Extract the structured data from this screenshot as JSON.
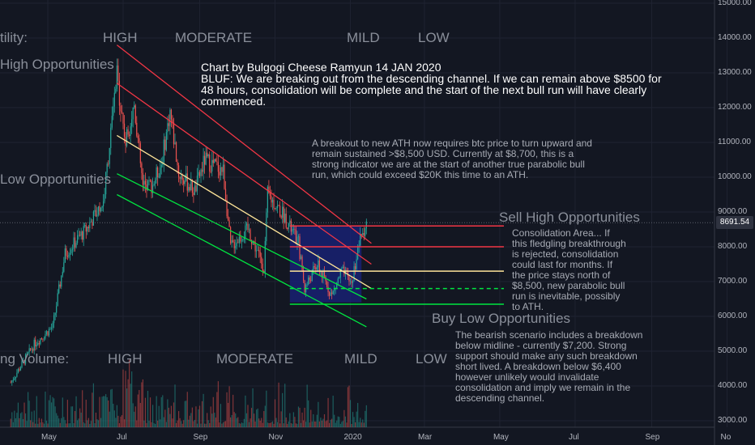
{
  "annotations": {
    "volatility_label": "tility:",
    "volatility_high": "HIGH",
    "volatility_moderate": "MODERATE",
    "volatility_mild": "MILD",
    "volatility_low": "LOW",
    "volume_label": "ng Volume:",
    "volume_high": "HIGH",
    "volume_moderate": "MODERATE",
    "volume_mild": "MILD",
    "volume_low": "LOW",
    "sell_high_left": "High Opportunities",
    "buy_low_left": "Low Opportunities",
    "sell_high_right": "Sell High Opportunities",
    "buy_low_right": "Buy Low Opportunities",
    "bluf": "Chart by Bulgogi Cheese Ramyun 14 JAN 2020\nBLUF: We are breaking out from the descending channel.  If we can remain above $8500 for\n48 hours, consolidation will be complete and the start of the next bull run will have clearly\ncommenced.",
    "breakout_note": "A breakout to new ATH now requires btc price to turn upward and\nremain sustained >$8,500 USD.  Currently at $8,700, this is a\nstrong indicator we are at the start of another true parabolic bull\nrun, which could exceed $20K this time to an ATH.",
    "consolidation_note": "Consolidation Area... If\nthis fledgling breakthrough\nis rejected, consolidation\ncould last for months.  If\nthe price stays north of\n$8,500, new parabolic bull\nrun is inevitable, possibly\nto ATH.",
    "bearish_note": "The bearish scenario includes a breakdown\nbelow midline - currently $7,200.  Strong\nsupport should make any such breakdown\nshort lived.  A breakdown below $6,400\nhowever unlikely would invalidate\nconsolidation and imply we remain in the\ndescending channel."
  },
  "current_price_label": "8691.54",
  "chart_data": {
    "type": "candlestick",
    "y_axis": {
      "min": 3000,
      "max": 15000,
      "scale": "linear",
      "position": "right",
      "ticks": [
        "3000.00",
        "4000.00",
        "5000.00",
        "6000.00",
        "7000.00",
        "8000.00",
        "9000.00",
        "10000.00",
        "11000.00",
        "12000.00",
        "13000.00",
        "14000.00",
        "15000.00"
      ]
    },
    "x_axis": {
      "ticks": [
        "May",
        "Jul",
        "Sep",
        "Nov",
        "2020",
        "Mar",
        "May",
        "Jul",
        "Sep",
        "No"
      ],
      "tick_dates": [
        "2019-05-01",
        "2019-07-01",
        "2019-09-01",
        "2019-11-01",
        "2020-01-01",
        "2020-03-01",
        "2020-05-01",
        "2020-07-01",
        "2020-09-01",
        "2020-11-01"
      ]
    },
    "current_price": 8691.54,
    "price_path": [
      {
        "date": "2019-04-01",
        "close": 4100
      },
      {
        "date": "2019-04-20",
        "close": 5200
      },
      {
        "date": "2019-05-05",
        "close": 5700
      },
      {
        "date": "2019-05-15",
        "close": 7800
      },
      {
        "date": "2019-06-01",
        "close": 8500
      },
      {
        "date": "2019-06-15",
        "close": 9300
      },
      {
        "date": "2019-06-26",
        "close": 12900
      },
      {
        "date": "2019-07-03",
        "close": 11000
      },
      {
        "date": "2019-07-10",
        "close": 12100
      },
      {
        "date": "2019-07-17",
        "close": 9700
      },
      {
        "date": "2019-07-25",
        "close": 9800
      },
      {
        "date": "2019-08-01",
        "close": 10400
      },
      {
        "date": "2019-08-08",
        "close": 11900
      },
      {
        "date": "2019-08-15",
        "close": 10100
      },
      {
        "date": "2019-08-28",
        "close": 9600
      },
      {
        "date": "2019-09-05",
        "close": 10500
      },
      {
        "date": "2019-09-20",
        "close": 10200
      },
      {
        "date": "2019-09-26",
        "close": 8000
      },
      {
        "date": "2019-10-10",
        "close": 8500
      },
      {
        "date": "2019-10-23",
        "close": 7400
      },
      {
        "date": "2019-10-26",
        "close": 9500
      },
      {
        "date": "2019-11-08",
        "close": 8900
      },
      {
        "date": "2019-11-20",
        "close": 8100
      },
      {
        "date": "2019-11-25",
        "close": 6800
      },
      {
        "date": "2019-12-05",
        "close": 7500
      },
      {
        "date": "2019-12-17",
        "close": 6600
      },
      {
        "date": "2019-12-25",
        "close": 7300
      },
      {
        "date": "2020-01-02",
        "close": 6950
      },
      {
        "date": "2020-01-08",
        "close": 8100
      },
      {
        "date": "2020-01-14",
        "close": 8691.54
      }
    ],
    "channel_lines": [
      {
        "color": "#f23645",
        "from": {
          "date": "2019-06-26",
          "price": 13800
        },
        "to": {
          "date": "2020-01-18",
          "price": 8100
        }
      },
      {
        "color": "#f23645",
        "from": {
          "date": "2019-06-26",
          "price": 12700
        },
        "to": {
          "date": "2020-01-18",
          "price": 7500
        }
      },
      {
        "color": "#ffe599",
        "from": {
          "date": "2019-06-26",
          "price": 11200
        },
        "to": {
          "date": "2020-01-18",
          "price": 6800
        }
      },
      {
        "color": "#00e640",
        "from": {
          "date": "2019-06-26",
          "price": 10100
        },
        "to": {
          "date": "2020-01-14",
          "price": 6500
        }
      },
      {
        "color": "#00e640",
        "from": {
          "date": "2019-06-26",
          "price": 9500
        },
        "to": {
          "date": "2020-01-14",
          "price": 5700
        }
      }
    ],
    "consolidation_box": {
      "from": "2019-11-13",
      "to": "2020-01-10",
      "top": 8600,
      "bottom": 6400
    },
    "projection_lines": [
      {
        "color": "#f23645",
        "price": 8600,
        "style": "solid"
      },
      {
        "color": "#f23645",
        "price": 8000,
        "style": "solid"
      },
      {
        "color": "#ffe599",
        "price": 7300,
        "style": "solid"
      },
      {
        "color": "#00e640",
        "price": 6800,
        "style": "dashed"
      },
      {
        "color": "#00e640",
        "price": 6350,
        "style": "solid"
      }
    ]
  }
}
